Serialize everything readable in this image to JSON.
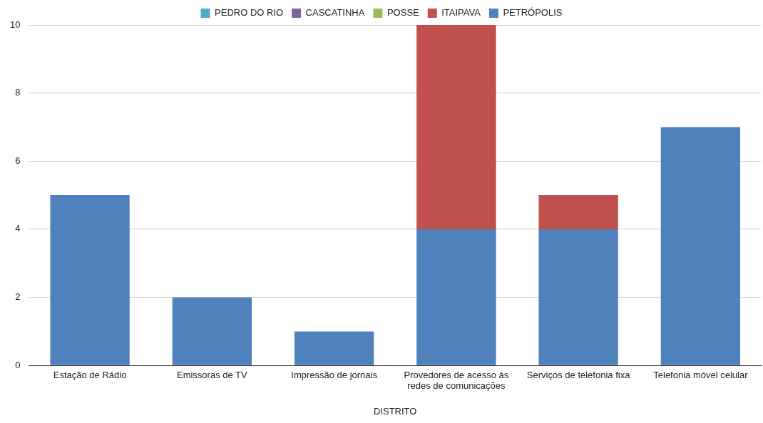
{
  "chart_data": {
    "type": "bar",
    "stacked": true,
    "xlabel": "DISTRITO",
    "categories": [
      "Estação de Rádio",
      "Emissoras de TV",
      "Impressão de jornais",
      "Provedores de acesso às redes de comunicações",
      "Serviços de telefonia fixa",
      "Telefonia móvel celular"
    ],
    "series": [
      {
        "name": "PETRÓPOLIS",
        "color": "#4f81bd",
        "values": [
          5,
          2,
          1,
          4,
          4,
          7
        ]
      },
      {
        "name": "ITAIPAVA",
        "color": "#c0504d",
        "values": [
          0,
          0,
          0,
          6,
          1,
          0
        ]
      },
      {
        "name": "POSSE",
        "color": "#9bbb59",
        "values": [
          0,
          0,
          0,
          0,
          0,
          0
        ]
      },
      {
        "name": "CASCATINHA",
        "color": "#8064a2",
        "values": [
          0,
          0,
          0,
          0,
          0,
          0
        ]
      },
      {
        "name": "PEDRO DO RIO",
        "color": "#4bacc6",
        "values": [
          0,
          0,
          0,
          0,
          0,
          0
        ]
      }
    ],
    "ylim": [
      0,
      10
    ],
    "yticks": [
      0,
      2,
      4,
      6,
      8,
      10
    ],
    "grid": "y",
    "legend": "top"
  }
}
